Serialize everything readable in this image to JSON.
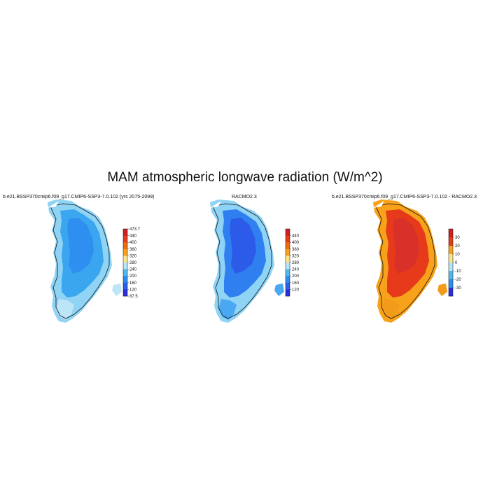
{
  "title": "MAM atmospheric longwave radiation (W/m^2)",
  "panels": [
    {
      "id": "model",
      "label": "b.e21.BSSP370cmip6.f09_g17.CMIP6-SSP3-7.0.102 (yrs 2075-2099)",
      "colorbar": {
        "labels": [
          "473.7",
          "440",
          "400",
          "360",
          "320",
          "280",
          "240",
          "200",
          "160",
          "120",
          "87.5"
        ],
        "colors": [
          "#d01f1f",
          "#e63a1a",
          "#f06a10",
          "#f7a21a",
          "#fde38a",
          "#b5e4f7",
          "#4fb9f0",
          "#2b8ef0",
          "#2a5fe8",
          "#2a2ee0"
        ]
      },
      "fill": {
        "coast": "#8fd3f5",
        "body": "#3aa6ef",
        "core": "#2f8ff0",
        "south": "#bde5f8"
      }
    },
    {
      "id": "obs",
      "label": "RACMO2.3",
      "colorbar": {
        "labels": [
          "440",
          "400",
          "360",
          "320",
          "280",
          "240",
          "200",
          "160",
          "120"
        ],
        "colors": [
          "#d01f1f",
          "#e63a1a",
          "#f06a10",
          "#f7a21a",
          "#fde38a",
          "#b5e4f7",
          "#4fb9f0",
          "#2b8ef0",
          "#2a5fe8",
          "#2a2ee0"
        ]
      },
      "fill": {
        "coast": "#8fd3f5",
        "body": "#2f7ff0",
        "core": "#2b5be8",
        "south": "#4aa8f2"
      }
    },
    {
      "id": "diff",
      "label": "b.e21.BSSP370cmip6.f09_g17.CMIP6-SSP3-7.0.102 - RACMO2.3",
      "colorbar": {
        "labels": [
          "30",
          "20",
          "10",
          "0",
          "-10",
          "-20",
          "-30"
        ],
        "colors": [
          "#d01f1f",
          "#e63a1a",
          "#f7a21a",
          "#fde38a",
          "#b5e4f7",
          "#4fb9f0",
          "#2b8ef0",
          "#2a2ee0"
        ]
      },
      "fill": {
        "coast": "#f7a21a",
        "body": "#e63a1a",
        "core": "#d9302a",
        "south": "#f29a1a"
      }
    }
  ]
}
